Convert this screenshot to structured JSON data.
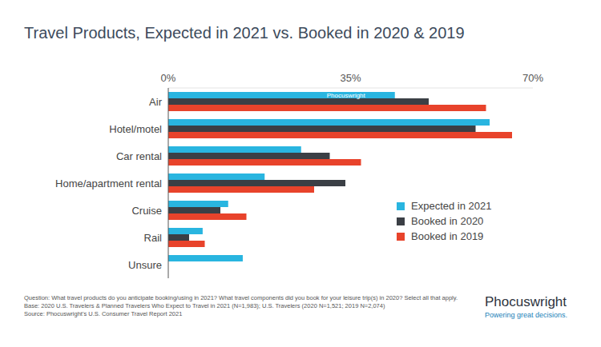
{
  "chart_data": {
    "type": "bar",
    "orientation": "horizontal",
    "title": "Travel Products, Expected in 2021 vs. Booked in 2020 & 2019",
    "categories": [
      "Air",
      "Hotel/motel",
      "Car rental",
      "Home/apartment rental",
      "Cruise",
      "Rail",
      "Unsure"
    ],
    "series": [
      {
        "name": "Expected in 2021",
        "color": "#29b5e0",
        "values": [
          43.5,
          61.7,
          25.5,
          18.5,
          11.5,
          6.6,
          14.3
        ]
      },
      {
        "name": "Booked in 2020",
        "color": "#3b3f45",
        "values": [
          50,
          59,
          31,
          34,
          10,
          4,
          null
        ]
      },
      {
        "name": "Booked in 2019",
        "color": "#e8432b",
        "values": [
          61,
          66,
          37,
          28,
          15,
          7,
          null
        ]
      }
    ],
    "xlim": [
      0,
      70
    ],
    "xticks": [
      {
        "value": 0,
        "label": "0%"
      },
      {
        "value": 35,
        "label": "35%"
      },
      {
        "value": 70,
        "label": "70%"
      }
    ],
    "grid": false,
    "legend": "right",
    "watermark": "Phocuswright"
  },
  "footer": {
    "notes": [
      "Question: What travel products do you anticipate booking/using in 2021? What travel components did you book for your leisure trip(s) in 2020? Select all that apply.",
      "Base:  2020 U.S. Travelers & Planned Travelers Who Expect to Travel in 2021 (N=1,983); U.S. Travelers (2020 N=1,521; 2019 N=2,074)",
      "Source: Phocuswright's U.S. Consumer Travel Report 2021"
    ],
    "logo": "Phocuswright",
    "tagline": "Powering great decisions."
  }
}
